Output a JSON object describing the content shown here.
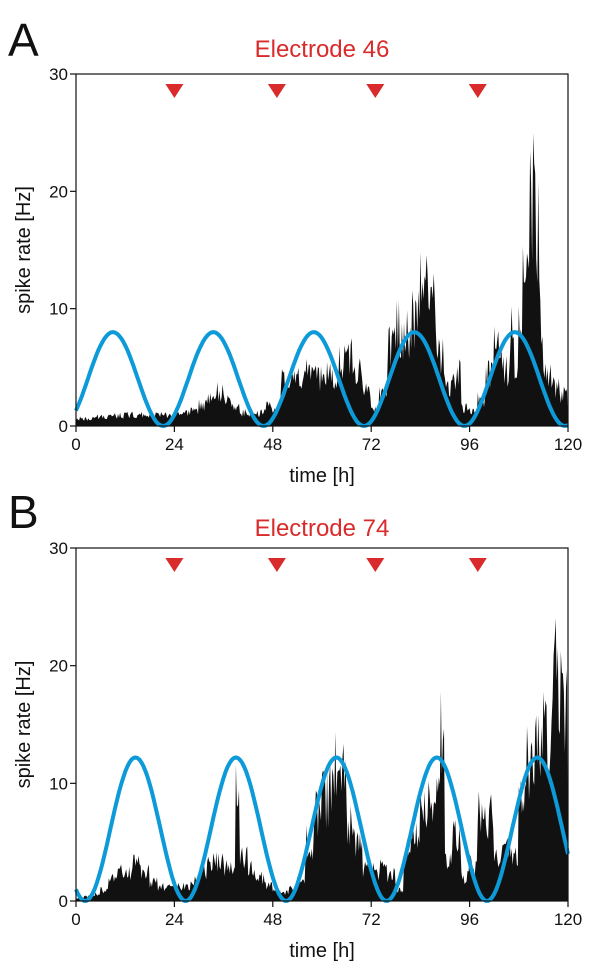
{
  "chart_data": [
    {
      "type": "area",
      "panel_label": "A",
      "title": "Electrode 46",
      "xlabel": "time [h]",
      "ylabel": "spike rate [Hz]",
      "xlim": [
        0,
        120
      ],
      "ylim": [
        0,
        30
      ],
      "xticks": [
        0,
        24,
        48,
        72,
        96,
        120
      ],
      "yticks": [
        0,
        10,
        20,
        30
      ],
      "grid": false,
      "legend": "none",
      "markers": {
        "shape": "down-triangle",
        "color": "#d92b2b",
        "x": [
          24,
          49,
          73,
          98
        ]
      },
      "series": [
        {
          "kind": "histogram",
          "color": "#111111",
          "x": [
            0,
            4,
            8,
            12,
            16,
            20,
            24,
            28,
            30,
            32,
            34,
            36,
            38,
            40,
            42,
            44,
            46,
            48,
            50,
            52,
            54,
            56,
            58,
            60,
            62,
            64,
            66,
            68,
            70,
            72,
            74,
            76,
            78,
            80,
            82,
            84,
            86,
            88,
            90,
            92,
            94,
            96,
            98,
            100,
            102,
            104,
            106,
            107,
            108,
            109,
            110,
            111,
            112,
            113,
            114,
            116,
            118,
            120
          ],
          "values": [
            0.8,
            1.0,
            1.1,
            1.2,
            1.2,
            1.2,
            1.3,
            1.6,
            2.2,
            2.8,
            3.6,
            2.6,
            2.0,
            1.4,
            1.2,
            1.4,
            2.1,
            1.8,
            4.8,
            5.0,
            5.2,
            5.6,
            5.2,
            5.9,
            5.6,
            6.8,
            7.5,
            5.9,
            3.6,
            1.6,
            3.5,
            8.5,
            10.2,
            9.6,
            11.5,
            14.8,
            12.5,
            7.5,
            4.2,
            5.5,
            2.0,
            1.5,
            2.8,
            5.5,
            8.4,
            6.0,
            10.2,
            4.8,
            11.2,
            15.0,
            22.5,
            23.8,
            21.0,
            12.0,
            6.0,
            4.0,
            3.2,
            3.6
          ]
        },
        {
          "kind": "sinusoid",
          "color": "#0d9ad8",
          "amplitude_peak": 8.0,
          "period_h": 24.5,
          "first_peak_h": 9
        }
      ]
    },
    {
      "type": "area",
      "panel_label": "B",
      "title": "Electrode 74",
      "xlabel": "time [h]",
      "ylabel": "spike rate [Hz]",
      "xlim": [
        0,
        120
      ],
      "ylim": [
        0,
        30
      ],
      "xticks": [
        0,
        24,
        48,
        72,
        96,
        120
      ],
      "yticks": [
        0,
        10,
        20,
        30
      ],
      "grid": false,
      "legend": "none",
      "markers": {
        "shape": "down-triangle",
        "color": "#d92b2b",
        "x": [
          24,
          49,
          73,
          98
        ]
      },
      "series": [
        {
          "kind": "histogram",
          "color": "#111111",
          "x": [
            0,
            2,
            4,
            6,
            8,
            10,
            12,
            14,
            16,
            18,
            20,
            22,
            24,
            26,
            28,
            30,
            32,
            34,
            36,
            38,
            39,
            40,
            42,
            44,
            46,
            48,
            50,
            52,
            54,
            56,
            58,
            60,
            62,
            63,
            64,
            65,
            66,
            68,
            70,
            72,
            74,
            76,
            78,
            80,
            82,
            84,
            86,
            88,
            89,
            90,
            92,
            94,
            96,
            98,
            100,
            102,
            104,
            106,
            108,
            110,
            112,
            114,
            116,
            118,
            120
          ],
          "values": [
            0.3,
            0.5,
            0.7,
            1.2,
            2.2,
            3.0,
            3.2,
            3.8,
            3.2,
            2.0,
            1.5,
            1.7,
            1.5,
            1.5,
            2.0,
            3.2,
            4.5,
            4.0,
            3.6,
            3.8,
            12.0,
            4.6,
            3.4,
            2.5,
            1.6,
            1.0,
            0.9,
            1.3,
            2.0,
            6.2,
            9.0,
            11.0,
            12.0,
            14.0,
            11.0,
            13.0,
            8.0,
            6.0,
            3.5,
            3.2,
            4.0,
            2.8,
            1.2,
            6.0,
            6.5,
            9.0,
            12.0,
            11.0,
            18.0,
            4.5,
            7.0,
            2.5,
            3.8,
            9.5,
            9.0,
            4.5,
            5.5,
            5.0,
            13.5,
            15.0,
            17.0,
            18.0,
            25.0,
            22.0,
            21.5
          ]
        },
        {
          "kind": "sinusoid",
          "color": "#0d9ad8",
          "amplitude_peak": 12.2,
          "period_h": 24.5,
          "first_peak_h": 14.5
        }
      ]
    }
  ]
}
